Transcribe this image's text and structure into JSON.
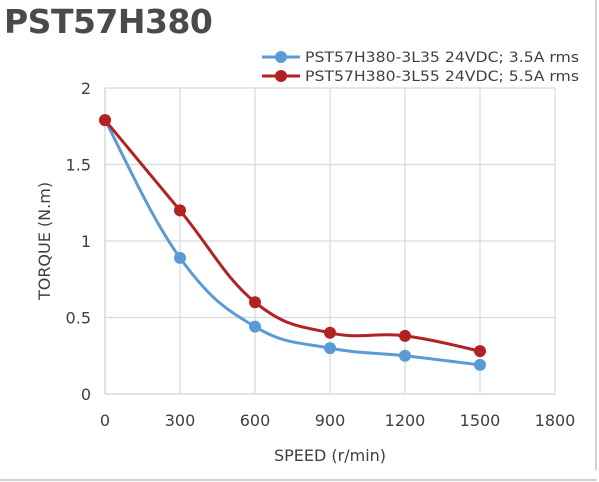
{
  "title": "PST57H380",
  "colors": {
    "series1": "#5b9bd5",
    "series2": "#b22222",
    "grid": "#d9d9d9",
    "text": "#404040"
  },
  "chart_data": {
    "type": "line",
    "title": "PST57H380",
    "xlabel": "SPEED (r/min)",
    "ylabel": "TORQUE (N.m)",
    "xlim": [
      0,
      1800
    ],
    "ylim": [
      0,
      2
    ],
    "xticks": [
      0,
      300,
      600,
      900,
      1200,
      1500,
      1800
    ],
    "yticks": [
      0,
      0.5,
      1,
      1.5,
      2
    ],
    "xtick_labels": [
      "0",
      "300",
      "600",
      "900",
      "1200",
      "1500",
      "1800"
    ],
    "ytick_labels": [
      "0",
      "0.5",
      "1",
      "1.5",
      "2"
    ],
    "grid": true,
    "legend_position": "top-right",
    "series": [
      {
        "name": "PST57H380-3L35 24VDC; 3.5A rms",
        "color": "#5b9bd5",
        "x": [
          0,
          300,
          600,
          900,
          1200,
          1500
        ],
        "y": [
          1.79,
          0.89,
          0.44,
          0.3,
          0.25,
          0.19
        ]
      },
      {
        "name": "PST57H380-3L55 24VDC; 5.5A rms",
        "color": "#b22222",
        "x": [
          0,
          300,
          600,
          900,
          1200,
          1500
        ],
        "y": [
          1.79,
          1.2,
          0.6,
          0.4,
          0.38,
          0.28
        ]
      }
    ]
  }
}
